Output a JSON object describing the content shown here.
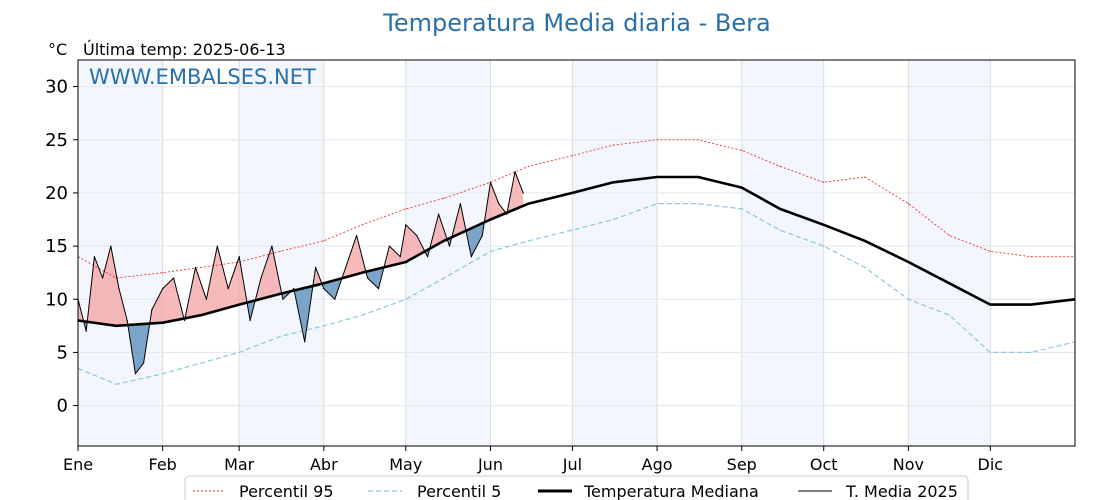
{
  "chart_data": {
    "type": "line",
    "title": "Temperatura Media diaria - Bera",
    "unit_label": "°C",
    "subtitle": "Última temp: 2025-06-13",
    "watermark": "WWW.EMBALSES.NET",
    "ylim": [
      -3.8,
      32.5
    ],
    "yticks": [
      0,
      5,
      10,
      15,
      20,
      25,
      30
    ],
    "xlim": [
      1,
      366
    ],
    "months": [
      {
        "label": "Ene",
        "day": 1
      },
      {
        "label": "Feb",
        "day": 32
      },
      {
        "label": "Mar",
        "day": 60
      },
      {
        "label": "Abr",
        "day": 91
      },
      {
        "label": "May",
        "day": 121
      },
      {
        "label": "Jun",
        "day": 152
      },
      {
        "label": "Jul",
        "day": 182
      },
      {
        "label": "Ago",
        "day": 213
      },
      {
        "label": "Sep",
        "day": 244
      },
      {
        "label": "Oct",
        "day": 274
      },
      {
        "label": "Nov",
        "day": 305
      },
      {
        "label": "Dic",
        "day": 335
      }
    ],
    "last_day": 164,
    "x_unit": "day_of_year",
    "grid": true,
    "legend_position": "bottom-center",
    "series": [
      {
        "name": "Percentil 95",
        "style": "dotted",
        "color": "#e8302e",
        "x": [
          1,
          15,
          32,
          46,
          60,
          75,
          91,
          105,
          121,
          135,
          152,
          166,
          182,
          197,
          213,
          228,
          244,
          258,
          274,
          289,
          305,
          320,
          335,
          350,
          366
        ],
        "values": [
          14,
          12,
          12.5,
          13,
          13.5,
          14.5,
          15.5,
          17,
          18.5,
          19.5,
          21,
          22.5,
          23.5,
          24.5,
          25,
          25,
          24,
          22.5,
          21,
          21.5,
          19,
          16,
          14.5,
          14,
          14
        ]
      },
      {
        "name": "Percentil 5",
        "style": "dashed",
        "color": "#8ac6dc",
        "x": [
          1,
          15,
          32,
          46,
          60,
          75,
          91,
          105,
          121,
          135,
          152,
          166,
          182,
          197,
          213,
          228,
          244,
          258,
          274,
          289,
          305,
          320,
          335,
          350,
          366
        ],
        "values": [
          3.5,
          2,
          3,
          4,
          5,
          6.5,
          7.5,
          8.5,
          10,
          12,
          14.5,
          15.5,
          16.5,
          17.5,
          19,
          19,
          18.5,
          16.5,
          15,
          13,
          10,
          8.5,
          5,
          5,
          6
        ]
      },
      {
        "name": "Temperatura Mediana",
        "style": "solid-thick",
        "color": "#000000",
        "x": [
          1,
          15,
          32,
          46,
          60,
          75,
          91,
          105,
          121,
          135,
          152,
          166,
          182,
          197,
          213,
          228,
          244,
          258,
          274,
          289,
          305,
          320,
          335,
          350,
          366
        ],
        "values": [
          8,
          7.5,
          7.8,
          8.5,
          9.5,
          10.5,
          11.5,
          12.5,
          13.5,
          15.5,
          17.5,
          19,
          20,
          21,
          21.5,
          21.5,
          20.5,
          18.5,
          17,
          15.5,
          13.5,
          11.5,
          9.5,
          9.5,
          10
        ]
      },
      {
        "name": "T. Media 2025",
        "style": "solid-thin",
        "color": "#000000",
        "x": [
          1,
          4,
          7,
          10,
          13,
          16,
          19,
          22,
          25,
          28,
          32,
          36,
          40,
          44,
          48,
          52,
          56,
          60,
          64,
          68,
          72,
          76,
          80,
          84,
          88,
          91,
          95,
          99,
          103,
          107,
          111,
          115,
          119,
          121,
          125,
          129,
          133,
          137,
          141,
          145,
          149,
          152,
          155,
          158,
          161,
          164
        ],
        "values": [
          10,
          7,
          14,
          12,
          15,
          11,
          8,
          3,
          4,
          9,
          11,
          12,
          8,
          13,
          10,
          15,
          11,
          14,
          8,
          12,
          15,
          10,
          11,
          6,
          13,
          11,
          10,
          13,
          16,
          12,
          11,
          15,
          14,
          17,
          16,
          14,
          18,
          15,
          19,
          14,
          16,
          21,
          19,
          18,
          22,
          20
        ]
      }
    ]
  },
  "legend": [
    {
      "label": "Percentil 95"
    },
    {
      "label": "Percentil 5"
    },
    {
      "label": "Temperatura Mediana"
    },
    {
      "label": "T. Media 2025"
    }
  ]
}
